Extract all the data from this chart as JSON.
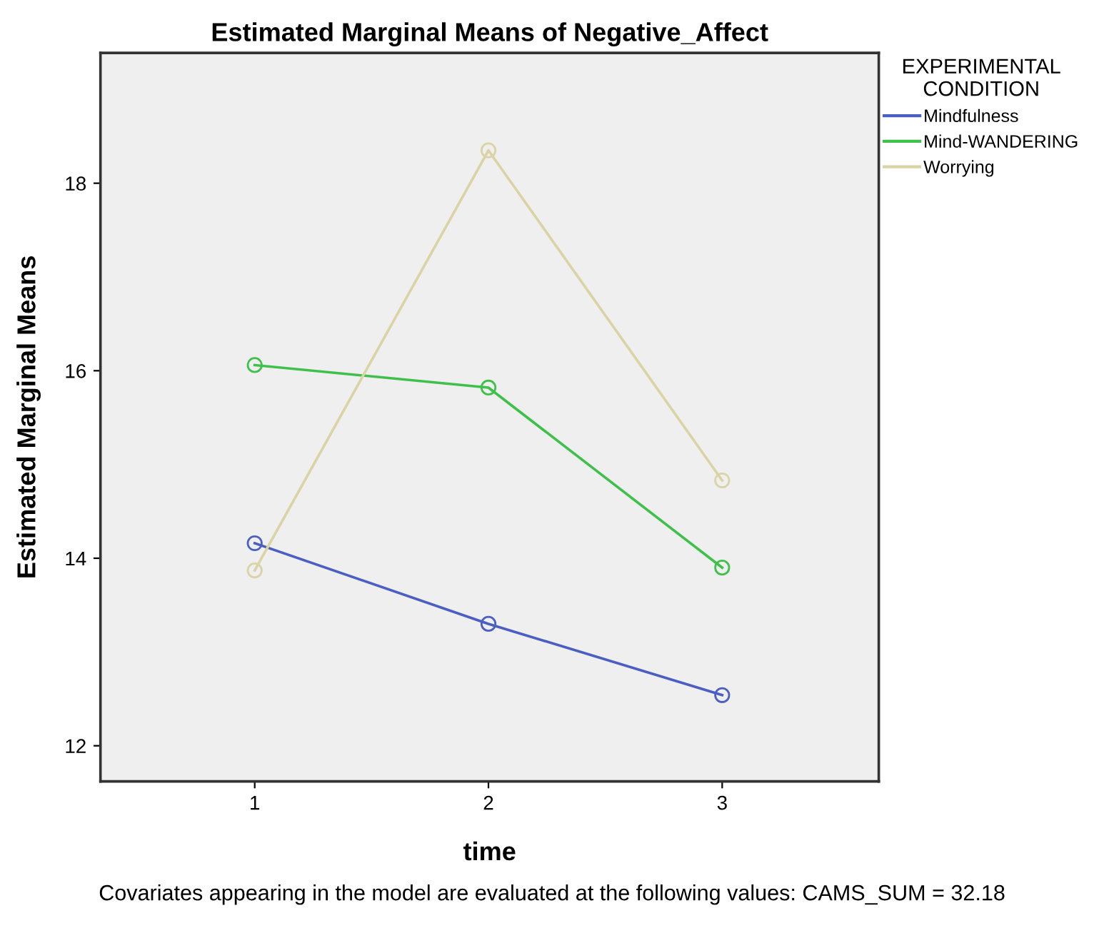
{
  "chart_data": {
    "type": "line",
    "title": "Estimated Marginal Means of Negative_Affect",
    "xlabel": "time",
    "ylabel": "Estimated Marginal Means",
    "legend_title": "EXPERIMENTAL\nCONDITION",
    "categories": [
      "1",
      "2",
      "3"
    ],
    "series": [
      {
        "name": "Mindfulness",
        "color": "#4a5fc1",
        "values": [
          14.16,
          13.3,
          12.54
        ]
      },
      {
        "name": "Mind-WANDERING",
        "color": "#3ec04b",
        "values": [
          16.06,
          15.82,
          13.9
        ]
      },
      {
        "name": "Worrying",
        "color": "#d9d3a5",
        "values": [
          13.87,
          18.35,
          14.83
        ]
      }
    ],
    "ylim": [
      11.62,
      19.39
    ],
    "yticks": [
      12,
      14,
      16,
      18
    ],
    "grid": false,
    "legend": "right",
    "marker": "circle",
    "line_style": "solid",
    "annotations": [
      "Covariates appearing in the model are evaluated at the following values: CAMS_SUM = 32.18"
    ]
  }
}
